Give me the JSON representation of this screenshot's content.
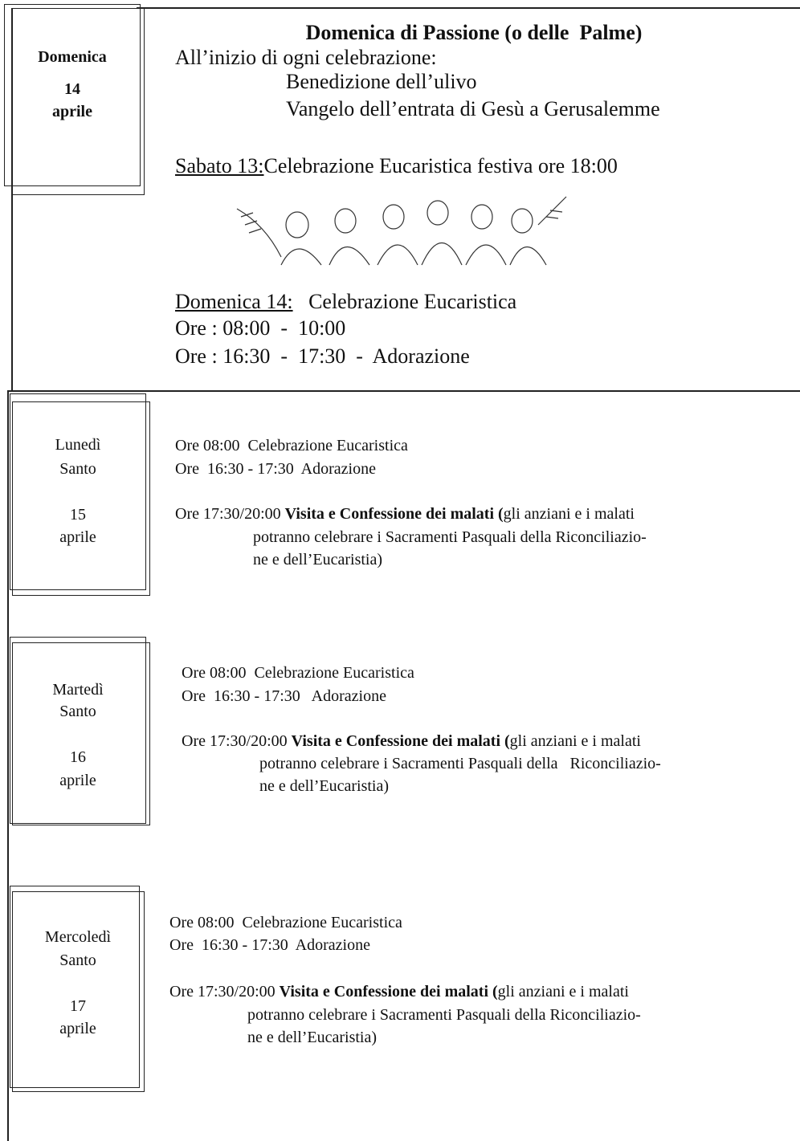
{
  "sections": [
    {
      "day": [
        "Domenica",
        "14",
        "aprile"
      ],
      "title": "Domenica di Passione (o delle  Palme)",
      "intro": "All’inizio di ogni celebrazione:",
      "rites": [
        "Benedizione dell’ulivo",
        "Vangelo dell’entrata di Gesù a Gerusalemme"
      ],
      "saturday": {
        "label": "Sabato 13:",
        "text": "Celebrazione Eucaristica festiva ore 18:00"
      },
      "sunday": {
        "label": "Domenica 14:",
        "text": "Celebrazione Eucaristica",
        "times": [
          "Ore : 08:00  -  10:00",
          "Ore : 16:30  -  17:30  -  Adorazione"
        ]
      }
    },
    {
      "day": [
        "Lunedì",
        "Santo",
        "15",
        "aprile"
      ],
      "lines": [
        "Ore 08:00  Celebrazione Eucaristica",
        "Ore  16:30 - 17:30  Adorazione"
      ],
      "visit": {
        "time": "Ore 17:30/20:00",
        "bold": "Visita e Confessione dei malati (",
        "rest": [
          "gli anziani e i malati",
          "potranno celebrare i Sacramenti Pasquali della Riconciliazio-",
          "ne e dell’Eucaristia)"
        ]
      }
    },
    {
      "day": [
        "Martedì",
        "Santo",
        "16",
        "aprile"
      ],
      "lines": [
        "Ore 08:00  Celebrazione Eucaristica",
        "Ore  16:30 - 17:30   Adorazione"
      ],
      "visit": {
        "time": "Ore 17:30/20:00",
        "bold": "Visita e Confessione dei malati (",
        "rest": [
          "gli anziani e i malati",
          "potranno celebrare i Sacramenti Pasquali della   Riconciliazio-",
          "ne e dell’Eucaristia)"
        ]
      }
    },
    {
      "day": [
        "Mercoledì",
        "Santo",
        "17",
        "aprile"
      ],
      "lines": [
        "Ore 08:00  Celebrazione Eucaristica",
        "Ore  16:30 - 17:30  Adorazione"
      ],
      "visit": {
        "time": "Ore 17:30/20:00",
        "bold": "Visita e Confessione dei malati (",
        "rest": [
          "gli anziani e i malati",
          "potranno celebrare i Sacramenti Pasquali della Riconciliazio-",
          "ne e dell’Eucaristia)"
        ]
      }
    }
  ]
}
